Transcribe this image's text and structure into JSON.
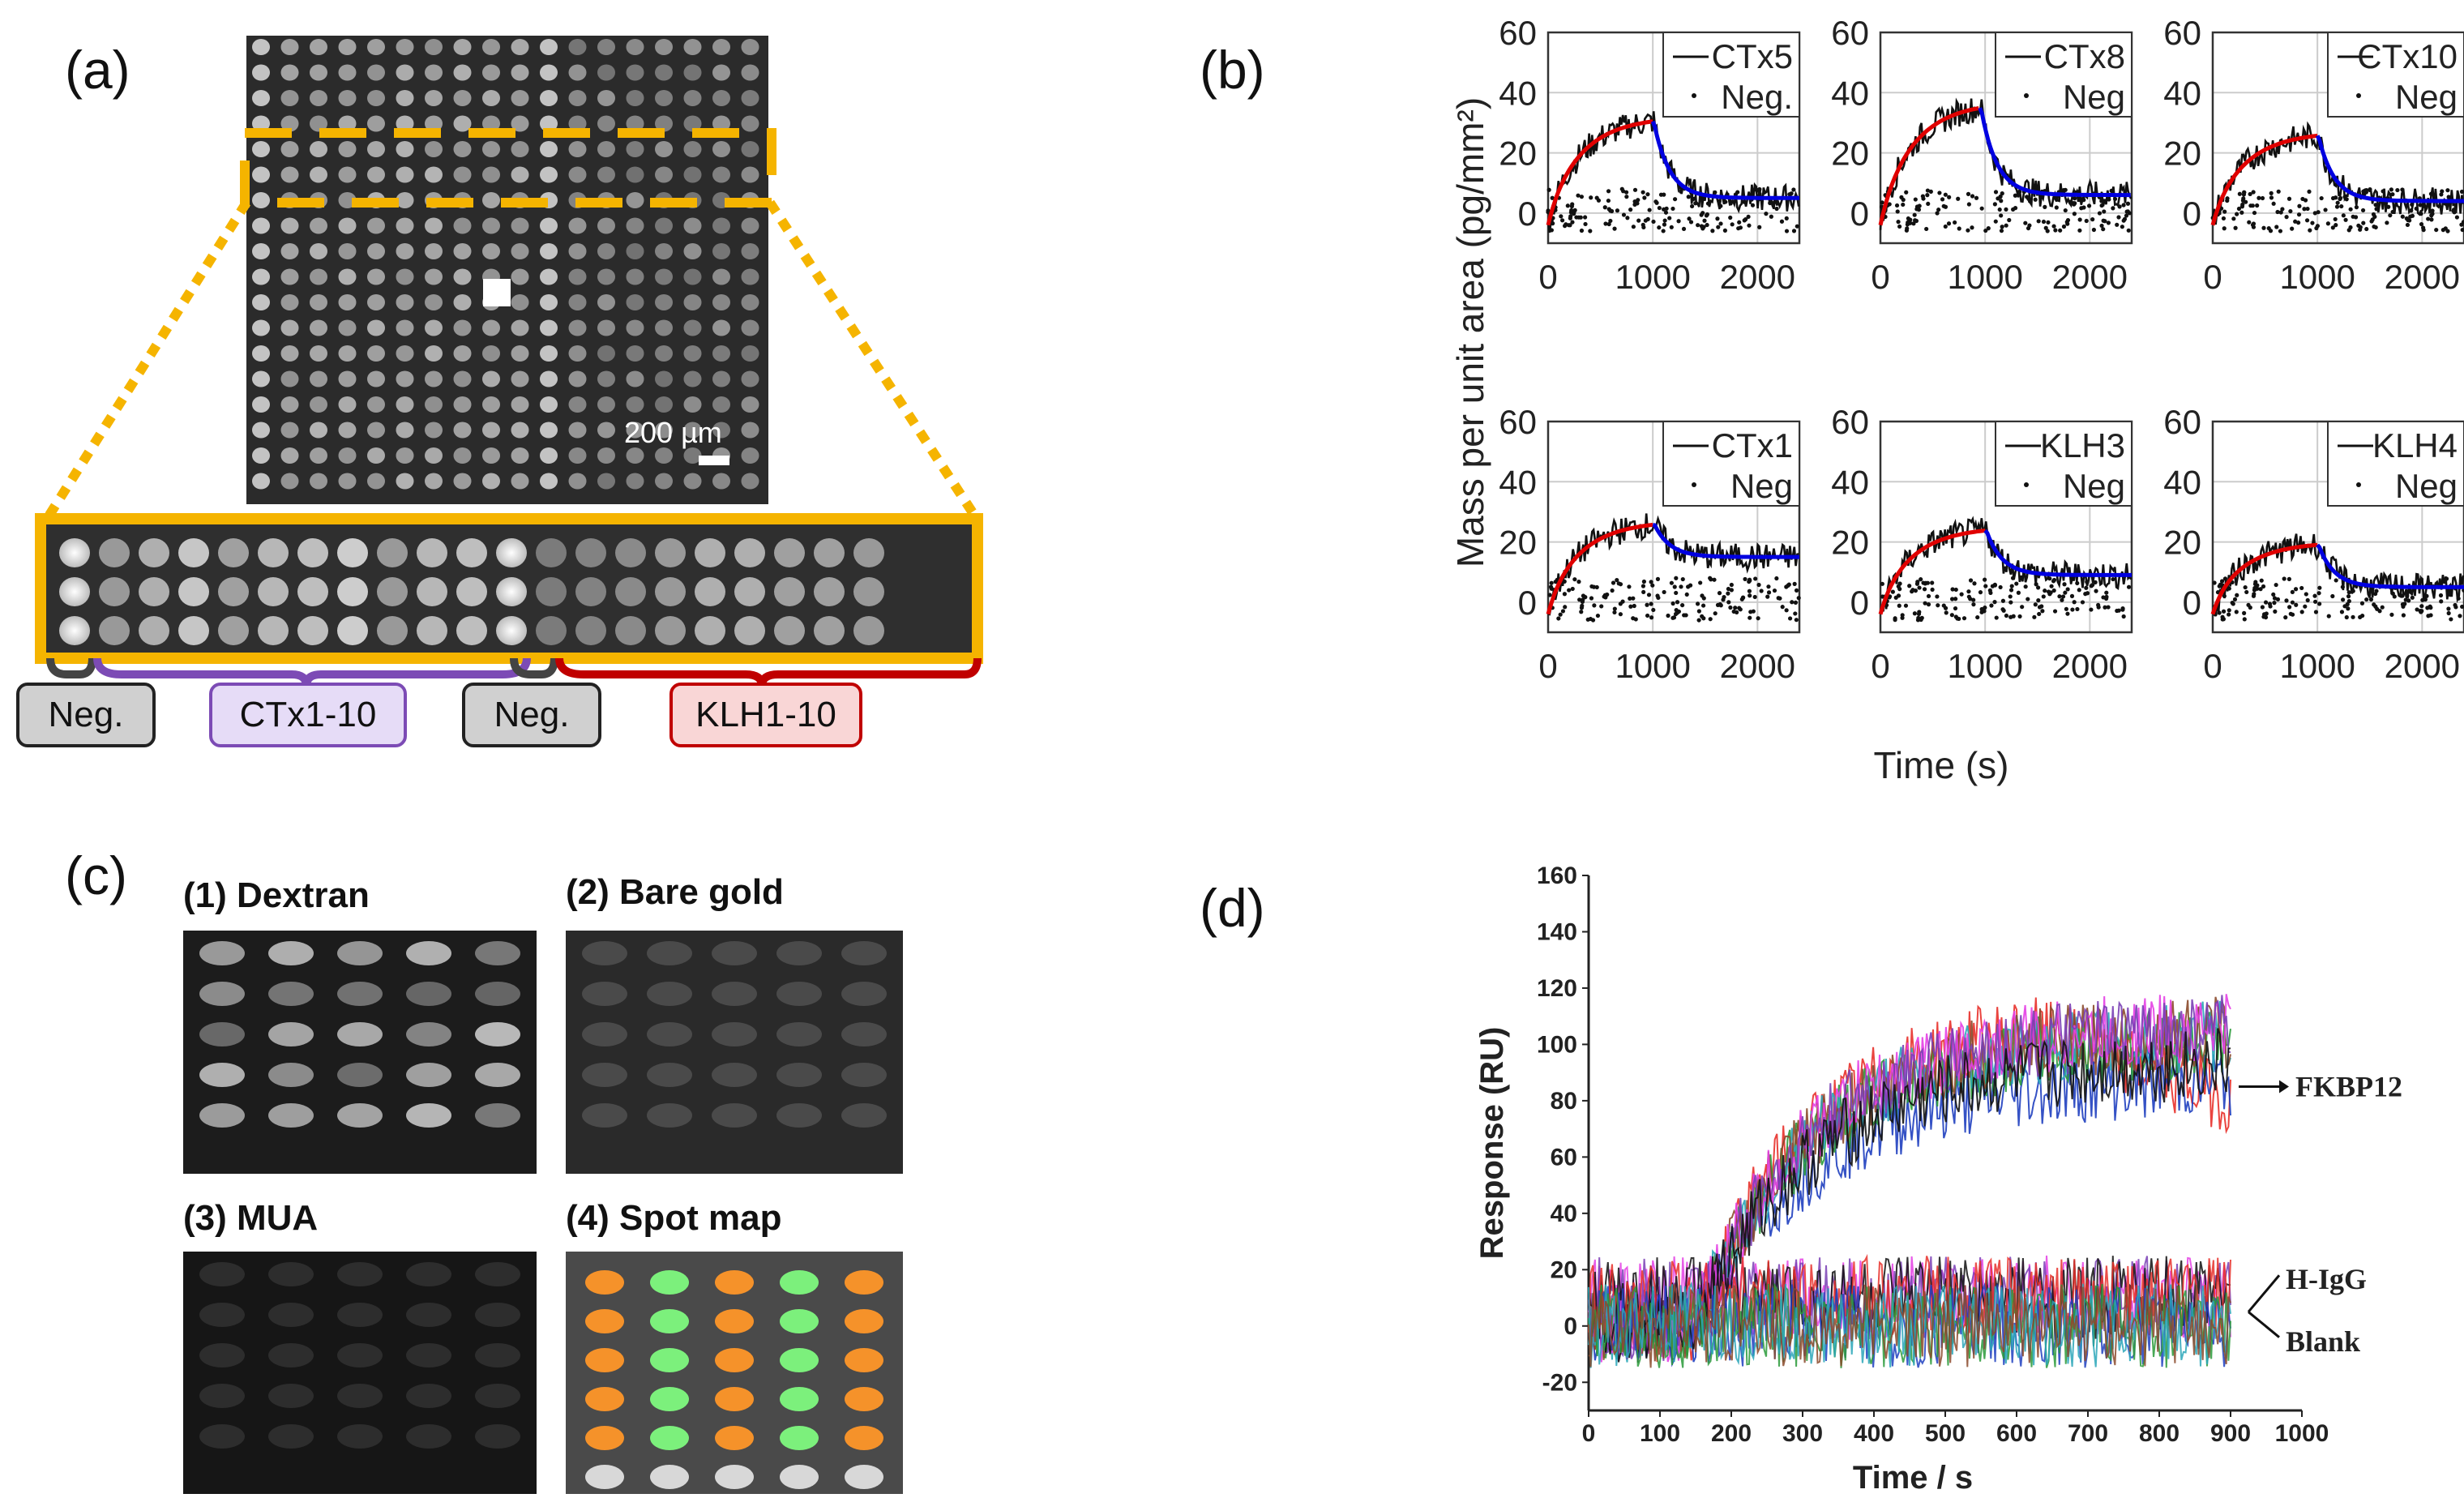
{
  "panel_labels": {
    "a": "(a)",
    "b": "(b)",
    "c": "(c)",
    "d": "(d)"
  },
  "panel_a": {
    "scale_bar": "200 µm",
    "tags": {
      "neg1": "Neg.",
      "ctx": "CTx1-10",
      "neg2": "Neg.",
      "klh": "KLH1-10"
    },
    "colors": {
      "zoom_box": "#f5b400",
      "ctx_bracket": "#7c4bb5",
      "klh_bracket": "#c00000",
      "neg_bracket": "#444444"
    }
  },
  "panel_c": {
    "titles": [
      "(1) Dextran",
      "(2) Bare gold",
      "(3) MUA",
      "(4) Spot map"
    ],
    "spot_colors": {
      "orange": "#f5922a",
      "green": "#7cf07c",
      "white": "#d8d8d8"
    }
  },
  "chart_data": [
    {
      "type": "line",
      "panel": "b",
      "name": "CTx5",
      "legend": [
        "CTx5",
        "Neg."
      ],
      "xlim": [
        0,
        2400
      ],
      "ylim": [
        -10,
        60
      ],
      "xticks": [
        "0",
        "1000",
        "2000"
      ],
      "yticks": [
        "0",
        "20",
        "40",
        "60"
      ],
      "ylabel": "Mass per unit area (pg/mm²)",
      "xlabel": "",
      "association_end_s": 1000,
      "plateau": 32,
      "dissociated_level": 5,
      "fit_colors": {
        "association": "#e00000",
        "dissociation": "#0000e0"
      }
    },
    {
      "type": "line",
      "panel": "b",
      "name": "CTx8",
      "legend": [
        "CTx8",
        "Neg"
      ],
      "xlim": [
        0,
        2400
      ],
      "ylim": [
        -10,
        60
      ],
      "xticks": [
        "0",
        "1000",
        "2000"
      ],
      "yticks": [
        "0",
        "20",
        "40",
        "60"
      ],
      "association_end_s": 950,
      "plateau": 37,
      "dissociated_level": 6
    },
    {
      "type": "line",
      "panel": "b",
      "name": "CTx10",
      "legend": [
        "CTx10",
        "Neg"
      ],
      "xlim": [
        0,
        2400
      ],
      "ylim": [
        -10,
        60
      ],
      "xticks": [
        "0",
        "1000",
        "2000"
      ],
      "yticks": [
        "0",
        "20",
        "40",
        "60"
      ],
      "association_end_s": 1000,
      "plateau": 27,
      "dissociated_level": 4
    },
    {
      "type": "line",
      "panel": "b",
      "name": "CTx1",
      "legend": [
        "CTx1",
        "Neg"
      ],
      "xlim": [
        0,
        2400
      ],
      "ylim": [
        -10,
        60
      ],
      "xticks": [
        "0",
        "1000",
        "2000"
      ],
      "yticks": [
        "0",
        "20",
        "40",
        "60"
      ],
      "association_end_s": 1000,
      "plateau": 27,
      "dissociated_level": 15
    },
    {
      "type": "line",
      "panel": "b",
      "name": "KLH3",
      "legend": [
        "KLH3",
        "Neg"
      ],
      "xlim": [
        0,
        2400
      ],
      "ylim": [
        -10,
        60
      ],
      "xticks": [
        "0",
        "1000",
        "2000"
      ],
      "yticks": [
        "0",
        "20",
        "40",
        "60"
      ],
      "xlabel": "Time (s)",
      "association_end_s": 1000,
      "plateau": 25,
      "dissociated_level": 9
    },
    {
      "type": "line",
      "panel": "b",
      "name": "KLH4",
      "legend": [
        "KLH4",
        "Neg"
      ],
      "xlim": [
        0,
        2400
      ],
      "ylim": [
        -10,
        60
      ],
      "xticks": [
        "0",
        "1000",
        "2000"
      ],
      "yticks": [
        "0",
        "20",
        "40",
        "60"
      ],
      "association_end_s": 1000,
      "plateau": 20,
      "dissociated_level": 5
    },
    {
      "type": "line",
      "panel": "d",
      "xlim": [
        0,
        1000
      ],
      "ylim": [
        -30,
        160
      ],
      "xticks": [
        "0",
        "100",
        "200",
        "300",
        "400",
        "500",
        "600",
        "700",
        "800",
        "900",
        "1000"
      ],
      "yticks": [
        "-20",
        "0",
        "20",
        "40",
        "60",
        "80",
        "100",
        "120",
        "140",
        "160"
      ],
      "xlabel": "Time / s",
      "ylabel": "Response (RU)",
      "annotations": [
        "FKBP12",
        "H-IgG",
        "Blank"
      ],
      "series": [
        {
          "name": "FKBP12",
          "start_s": 150,
          "plateau": 100,
          "end_s": 900
        },
        {
          "name": "H-IgG",
          "level": 10
        },
        {
          "name": "Blank",
          "level": 0
        }
      ],
      "series_colors": [
        "#e8302a",
        "#1f3fbf",
        "#2a9a3a",
        "#2aa6b8",
        "#8b4a2b",
        "#e43fe4",
        "#7a3fb5",
        "#111111"
      ]
    }
  ]
}
